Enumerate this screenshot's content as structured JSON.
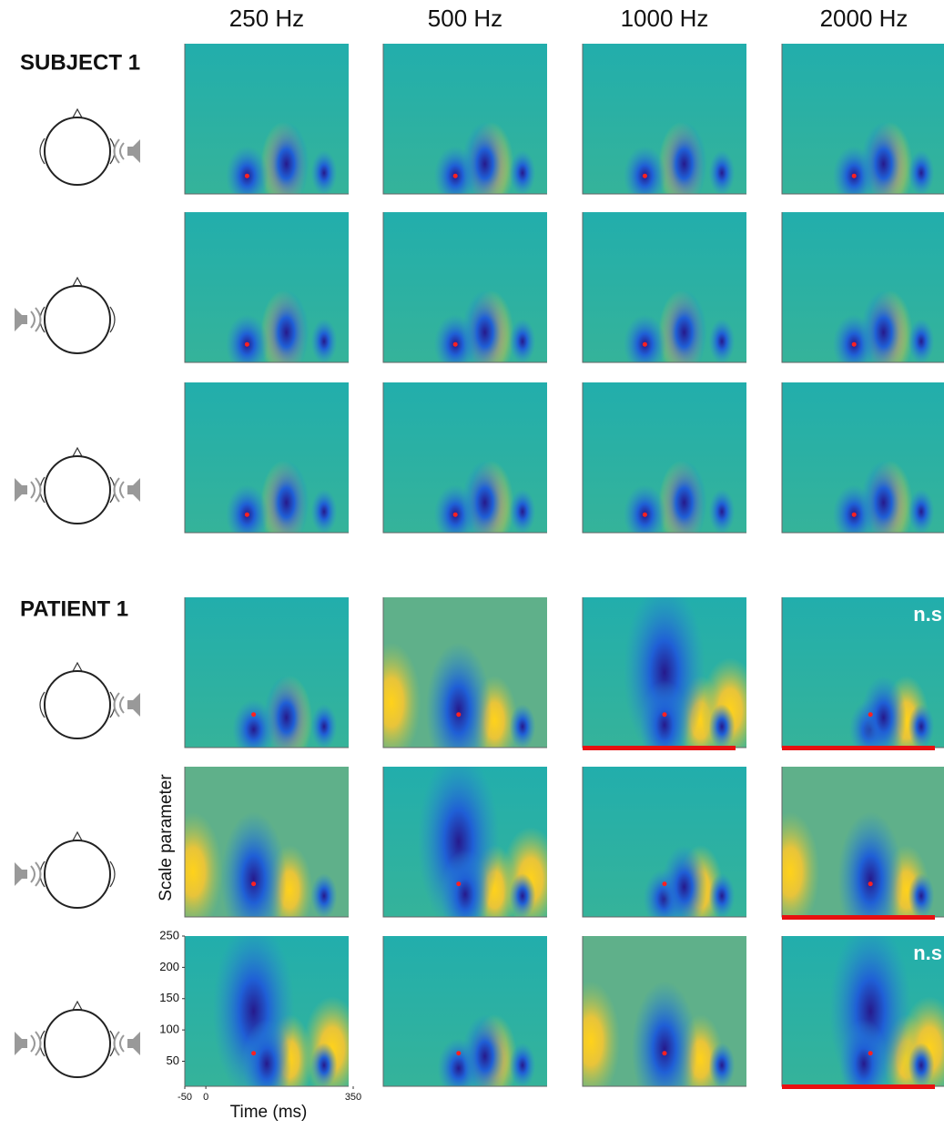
{
  "columns": [
    "250 Hz",
    "500 Hz",
    "1000 Hz",
    "2000 Hz"
  ],
  "groups": [
    {
      "label": "SUBJECT 1"
    },
    {
      "label": "PATIENT 1",
      "annotations": [
        [
          null,
          null,
          null,
          "n.s"
        ],
        [
          null,
          null,
          null,
          null
        ],
        [
          null,
          null,
          null,
          "n.s"
        ]
      ]
    }
  ],
  "axes": {
    "y_label": "Scale parameter",
    "ylim": [
      10,
      250
    ],
    "yticks": [
      50,
      100,
      150,
      200,
      250
    ],
    "x_label": "Time (ms)",
    "xlim": [
      -50,
      350
    ],
    "xticks": [
      -50,
      0,
      350
    ]
  }
}
